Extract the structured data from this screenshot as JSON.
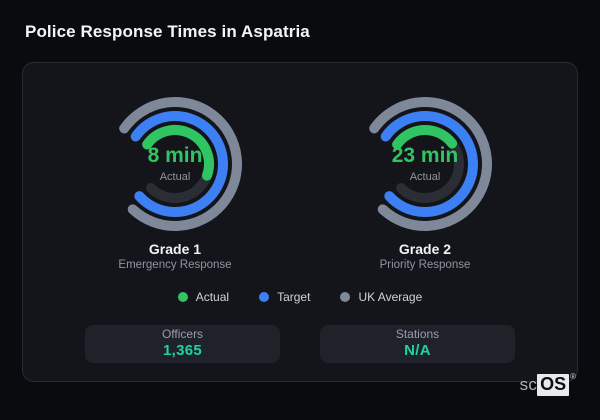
{
  "header": {
    "title": "Police Response Times in Aspatria"
  },
  "chart_data": {
    "type": "gauge",
    "title": "Police Response Times in Aspatria",
    "legend_position": "bottom",
    "series_legend": [
      {
        "name": "Actual",
        "color": "#30c463"
      },
      {
        "name": "Target",
        "color": "#3d80f4"
      },
      {
        "name": "UK Average",
        "color": "#7e8899"
      }
    ],
    "gauge_geometry": {
      "start_angle_deg": 305,
      "span_deg": 280,
      "radii": [
        62,
        48,
        34
      ],
      "stroke_width": 10,
      "track_color": "#2a2d34"
    },
    "gauges": [
      {
        "name": "Grade 1",
        "description": "Emergency Response",
        "center_value": "8 min",
        "center_label": "Actual",
        "actual_minutes": 8,
        "rings": [
          {
            "series": "UK Average",
            "radius_index": 0,
            "sweep_deg": 278,
            "track": false
          },
          {
            "series": "Target",
            "radius_index": 1,
            "sweep_deg": 283,
            "track": false
          },
          {
            "series": "Actual",
            "radius_index": 2,
            "sweep_deg": 165,
            "track": true
          }
        ]
      },
      {
        "name": "Grade 2",
        "description": "Priority Response",
        "center_value": "23 min",
        "center_label": "Actual",
        "actual_minutes": 23,
        "rings": [
          {
            "series": "UK Average",
            "radius_index": 0,
            "sweep_deg": 278,
            "track": false
          },
          {
            "series": "Target",
            "radius_index": 1,
            "sweep_deg": 283,
            "track": false
          },
          {
            "series": "Actual",
            "radius_index": 2,
            "sweep_deg": 108,
            "track": true
          }
        ]
      }
    ],
    "stats": [
      {
        "label": "Officers",
        "value": "1,365"
      },
      {
        "label": "Stations",
        "value": "N/A"
      }
    ]
  },
  "colors": {
    "page_bg": "#0a0b0e",
    "card_bg": "#14151a",
    "card_border": "#272b32",
    "stat_box_bg": "#1f2229",
    "stat_value": "#1cd3a2",
    "gauge_value_text": "#30c463",
    "actual": "#30c463",
    "target": "#3d80f4",
    "uk_average": "#7e8899",
    "track": "#2a2d34"
  },
  "logo": {
    "prefix": "sc",
    "box": "OS",
    "registered": "®"
  }
}
